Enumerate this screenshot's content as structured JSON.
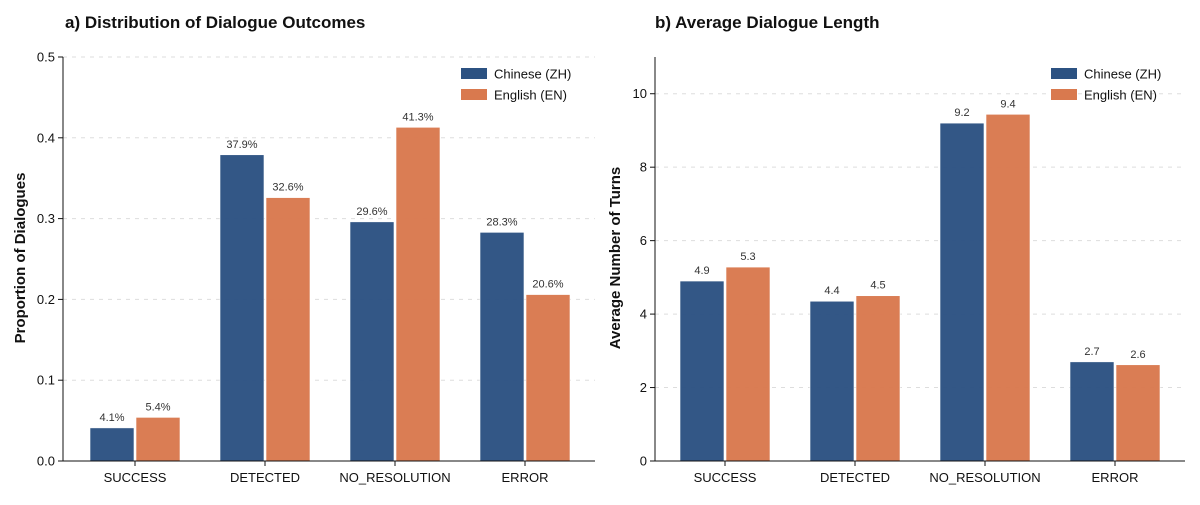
{
  "colors": {
    "zh": "#2c5282",
    "en": "#d9794e"
  },
  "chart_data": [
    {
      "type": "bar",
      "title": "a) Distribution of Dialogue Outcomes",
      "xlabel": "",
      "ylabel": "Proportion of Dialogues",
      "ylim": [
        0,
        0.5
      ],
      "yticks": [
        0.0,
        0.1,
        0.2,
        0.3,
        0.4,
        0.5
      ],
      "ytick_labels": [
        "0.0",
        "0.1",
        "0.2",
        "0.3",
        "0.4",
        "0.5"
      ],
      "categories": [
        "SUCCESS",
        "DETECTED",
        "NO_RESOLUTION",
        "ERROR"
      ],
      "legend_position": "top-right",
      "grid": true,
      "series": [
        {
          "name": "Chinese (ZH)",
          "color_key": "zh",
          "values": [
            0.041,
            0.379,
            0.296,
            0.283
          ],
          "labels": [
            "4.1%",
            "37.9%",
            "29.6%",
            "28.3%"
          ]
        },
        {
          "name": "English (EN)",
          "color_key": "en",
          "values": [
            0.054,
            0.326,
            0.413,
            0.206
          ],
          "labels": [
            "5.4%",
            "32.6%",
            "41.3%",
            "20.6%"
          ]
        }
      ]
    },
    {
      "type": "bar",
      "title": "b) Average Dialogue Length",
      "xlabel": "",
      "ylabel": "Average Number of Turns",
      "ylim": [
        0,
        11
      ],
      "yticks": [
        0,
        2,
        4,
        6,
        8,
        10
      ],
      "ytick_labels": [
        "0",
        "2",
        "4",
        "6",
        "8",
        "10"
      ],
      "categories": [
        "SUCCESS",
        "DETECTED",
        "NO_RESOLUTION",
        "ERROR"
      ],
      "legend_position": "top-right",
      "grid": true,
      "series": [
        {
          "name": "Chinese (ZH)",
          "color_key": "zh",
          "values": [
            4.9,
            4.35,
            9.2,
            2.7
          ],
          "labels": [
            "4.9",
            "4.4",
            "9.2",
            "2.7"
          ]
        },
        {
          "name": "English (EN)",
          "color_key": "en",
          "values": [
            5.28,
            4.5,
            9.44,
            2.62
          ],
          "labels": [
            "5.3",
            "4.5",
            "9.4",
            "2.6"
          ]
        }
      ]
    }
  ]
}
